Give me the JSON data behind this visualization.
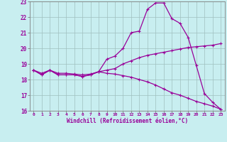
{
  "xlabel": "Windchill (Refroidissement éolien,°C)",
  "background_color": "#c8eef0",
  "grid_color": "#9fbfbf",
  "line_color": "#990099",
  "xlim": [
    -0.5,
    23.5
  ],
  "ylim": [
    16,
    23
  ],
  "xticks": [
    0,
    1,
    2,
    3,
    4,
    5,
    6,
    7,
    8,
    9,
    10,
    11,
    12,
    13,
    14,
    15,
    16,
    17,
    18,
    19,
    20,
    21,
    22,
    23
  ],
  "yticks": [
    16,
    17,
    18,
    19,
    20,
    21,
    22,
    23
  ],
  "line1_y": [
    18.6,
    18.3,
    18.6,
    18.3,
    18.3,
    18.3,
    18.2,
    18.3,
    18.5,
    19.3,
    19.5,
    20.0,
    21.0,
    21.1,
    22.5,
    22.9,
    22.9,
    21.9,
    21.6,
    20.7,
    18.9,
    17.1,
    16.55,
    16.1
  ],
  "line2_y": [
    18.6,
    18.4,
    18.6,
    18.4,
    18.4,
    18.35,
    18.3,
    18.35,
    18.5,
    18.6,
    18.7,
    19.0,
    19.2,
    19.4,
    19.55,
    19.65,
    19.75,
    19.85,
    19.95,
    20.05,
    20.1,
    20.15,
    20.2,
    20.3
  ],
  "line3_y": [
    18.6,
    18.3,
    18.6,
    18.3,
    18.3,
    18.3,
    18.2,
    18.3,
    18.5,
    18.4,
    18.35,
    18.25,
    18.15,
    18.0,
    17.85,
    17.65,
    17.4,
    17.15,
    17.0,
    16.8,
    16.6,
    16.45,
    16.3,
    16.1
  ]
}
